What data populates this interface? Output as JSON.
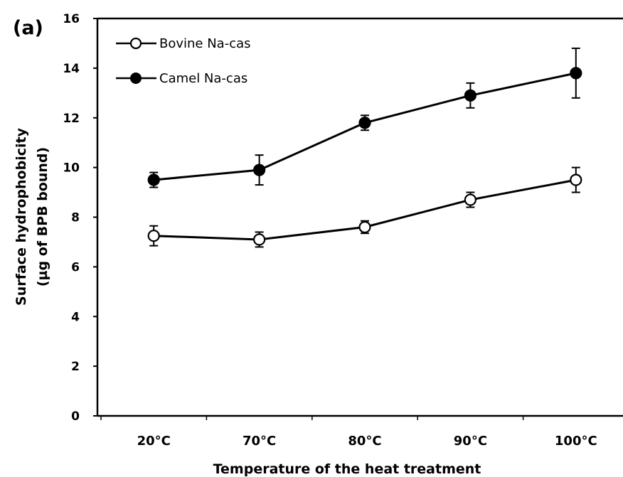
{
  "panel_label": "(a)",
  "chart_data": {
    "type": "line",
    "title": "",
    "xlabel": "Temperature of the heat treatment",
    "ylabel": "Surface hydrophobicity",
    "ylabel_line2": "(µg of BPB bound)",
    "categories": [
      "20°C",
      "70°C",
      "80°C",
      "90°C",
      "100°C"
    ],
    "ylim": [
      0,
      16
    ],
    "yticks": [
      0,
      2,
      4,
      6,
      8,
      10,
      12,
      14,
      16
    ],
    "grid": false,
    "legend_position": "top-left",
    "series": [
      {
        "name": "Bovine Na-cas",
        "marker": "open-circle",
        "values": [
          7.25,
          7.1,
          7.6,
          8.7,
          9.5
        ],
        "errors": [
          0.4,
          0.3,
          0.25,
          0.3,
          0.5
        ]
      },
      {
        "name": "Camel Na-cas",
        "marker": "filled-circle",
        "values": [
          9.5,
          9.9,
          11.8,
          12.9,
          13.8
        ],
        "errors": [
          0.3,
          0.6,
          0.3,
          0.5,
          1.0
        ]
      }
    ],
    "colors": {
      "line": "#000000",
      "open_marker_fill": "#ffffff",
      "filled_marker_fill": "#000000"
    }
  }
}
